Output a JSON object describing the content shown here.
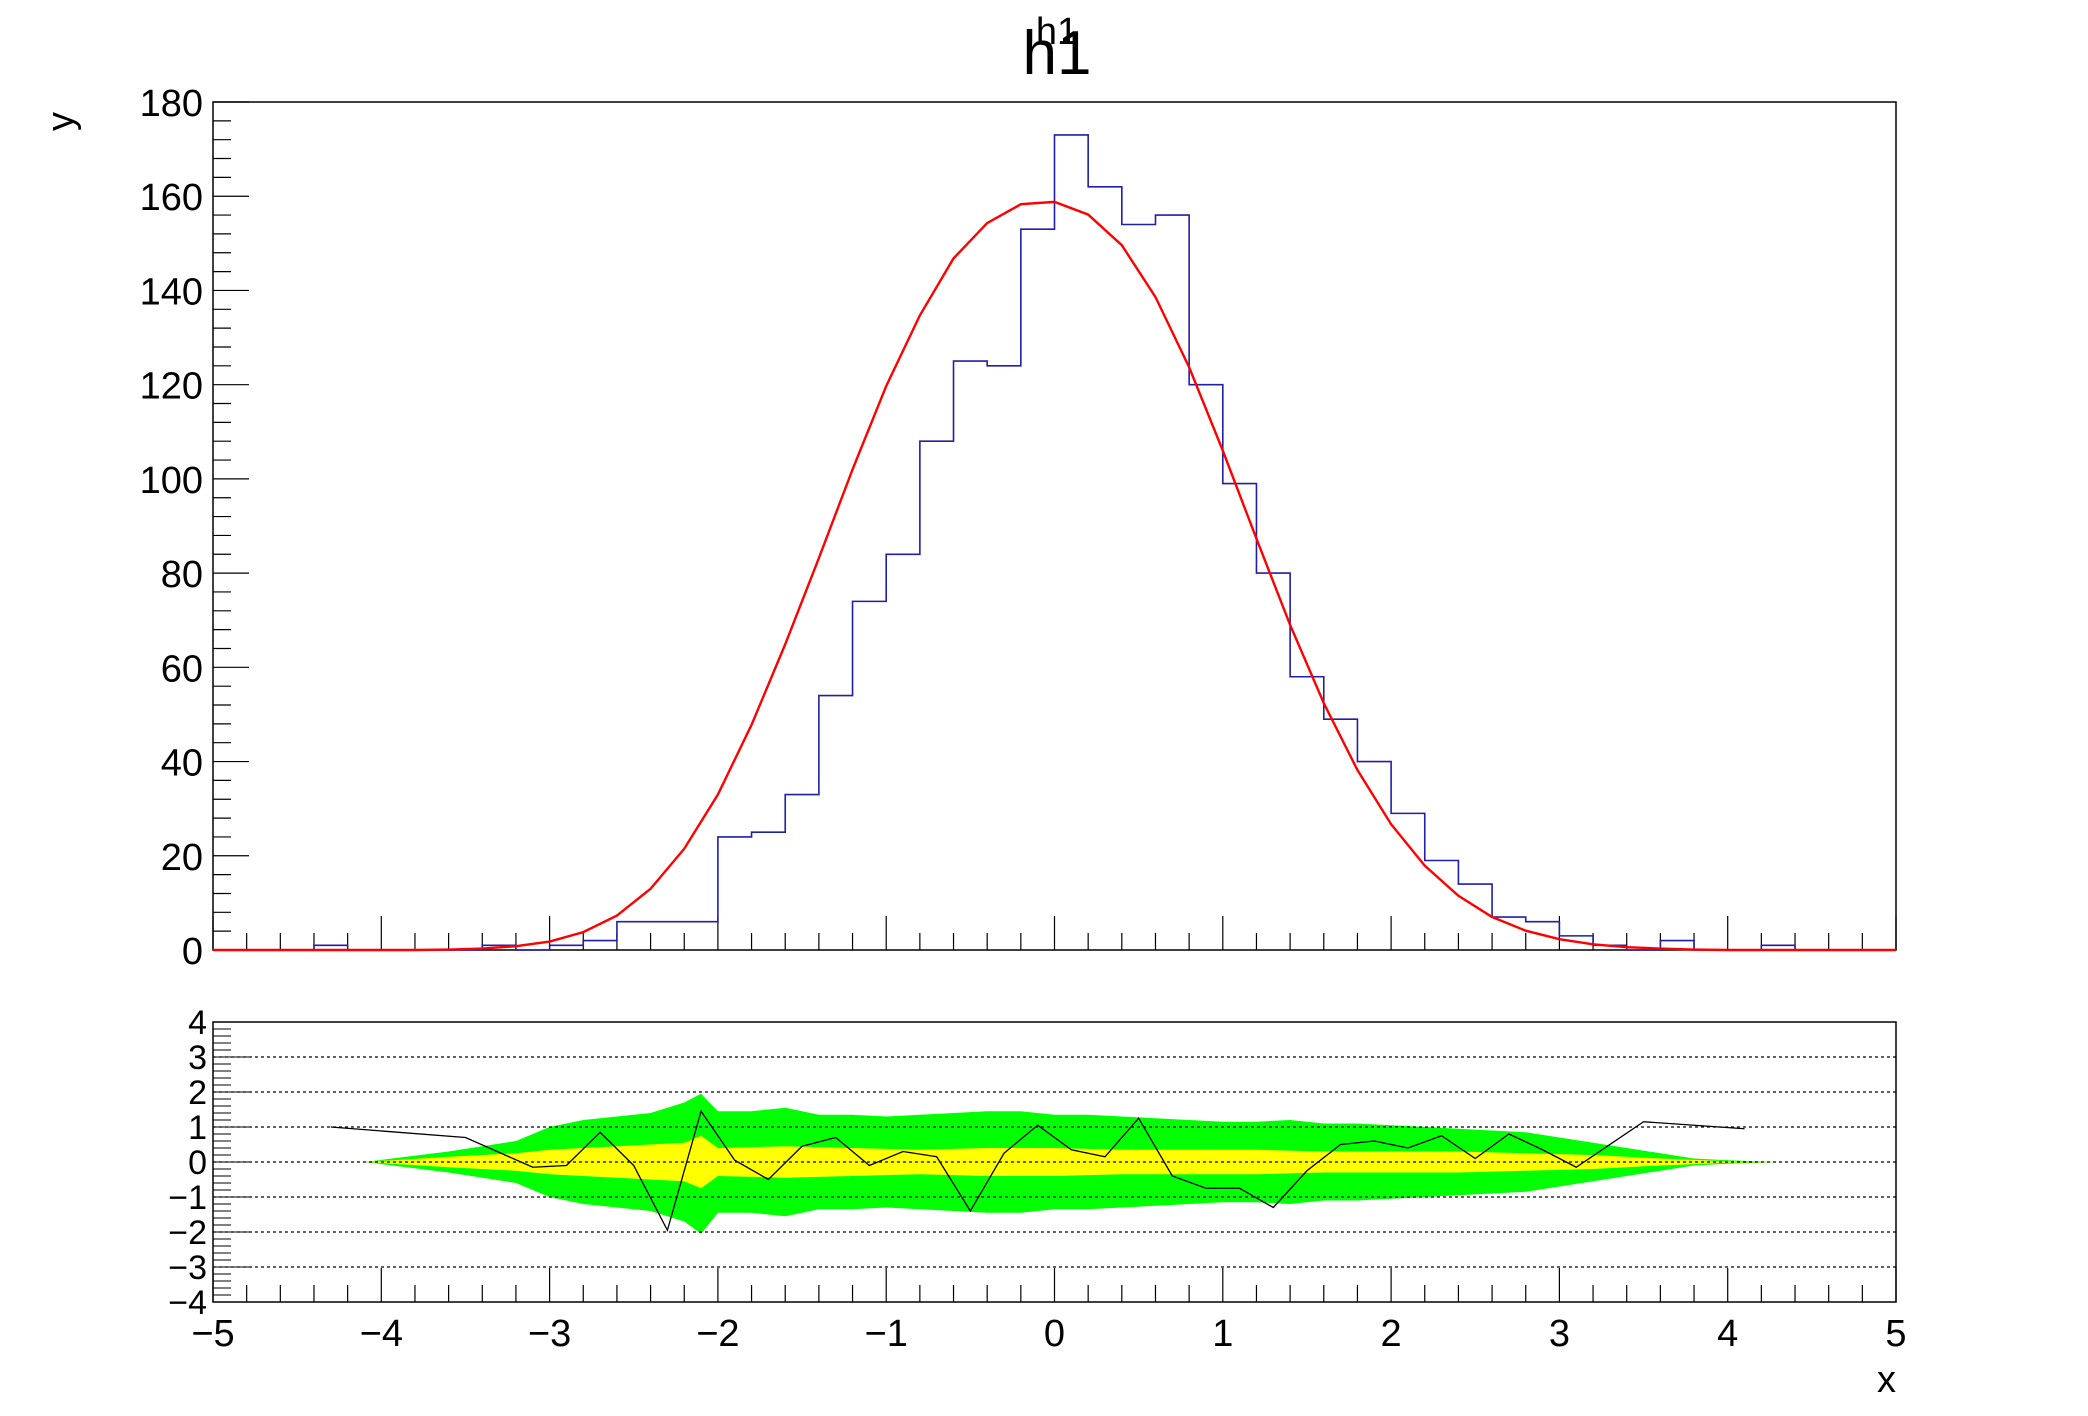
{
  "chart_data": [
    {
      "type": "histogram-with-fit",
      "title": "h1",
      "ylabel": "y",
      "xlim": [
        -5,
        5
      ],
      "ylim": [
        0,
        180
      ],
      "x_ticks": [
        -5,
        -4,
        -3,
        -2,
        -1,
        0,
        1,
        2,
        3,
        4,
        5
      ],
      "y_ticks": [
        0,
        20,
        40,
        60,
        80,
        100,
        120,
        140,
        160,
        180
      ],
      "colors": {
        "histogram": "#1f1fa8",
        "fit": "#ff0000",
        "frame": "#000000"
      },
      "histogram": {
        "bin_width": 0.2,
        "bin_lows": [
          -5.0,
          -4.8,
          -4.6,
          -4.4,
          -4.2,
          -4.0,
          -3.8,
          -3.6,
          -3.4,
          -3.2,
          -3.0,
          -2.8,
          -2.6,
          -2.4,
          -2.2,
          -2.0,
          -1.8,
          -1.6,
          -1.4,
          -1.2,
          -1.0,
          -0.8,
          -0.6,
          -0.4,
          -0.2,
          0.0,
          0.2,
          0.4,
          0.6,
          0.8,
          1.0,
          1.2,
          1.4,
          1.6,
          1.8,
          2.0,
          2.2,
          2.4,
          2.6,
          2.8,
          3.0,
          3.2,
          3.4,
          3.6,
          3.8,
          4.0,
          4.2,
          4.4,
          4.6,
          4.8
        ],
        "counts": [
          0,
          0,
          0,
          1,
          0,
          0,
          0,
          0,
          1,
          0,
          1,
          2,
          6,
          6,
          6,
          24,
          25,
          33,
          54,
          74,
          84,
          108,
          125,
          124,
          153,
          173,
          162,
          154,
          156,
          120,
          99,
          80,
          58,
          49,
          40,
          29,
          19,
          14,
          7,
          6,
          3,
          1,
          0,
          2,
          0,
          0,
          1,
          0,
          0,
          0
        ]
      },
      "fit": {
        "function": "gaussian",
        "x": [
          -5,
          -4.8,
          -4.6,
          -4.4,
          -4.2,
          -4,
          -3.8,
          -3.6,
          -3.4,
          -3.2,
          -3,
          -2.8,
          -2.6,
          -2.4,
          -2.2,
          -2,
          -1.8,
          -1.6,
          -1.4,
          -1.2,
          -1,
          -0.8,
          -0.6,
          -0.4,
          -0.2,
          0,
          0.2,
          0.4,
          0.6,
          0.8,
          1,
          1.2,
          1.4,
          1.6,
          1.8,
          2,
          2.2,
          2.4,
          2.6,
          2.8,
          3,
          3.2,
          3.4,
          3.6,
          3.8,
          4,
          4.2,
          4.4,
          4.6,
          4.8,
          5
        ],
        "y": [
          0,
          0,
          0,
          0,
          0,
          0,
          0,
          0.1,
          0.3,
          0.8,
          1.8,
          3.8,
          7.3,
          13,
          21.5,
          33,
          47.8,
          64.9,
          83.2,
          102,
          119.7,
          134.7,
          146.8,
          154.3,
          158.3,
          158.8,
          156.1,
          149.6,
          138.6,
          123.7,
          106,
          87.3,
          69,
          52.4,
          38.2,
          26.7,
          17.9,
          11.5,
          7,
          4.1,
          2.3,
          1.2,
          0.6,
          0.3,
          0.1,
          0,
          0,
          0,
          0,
          0,
          0
        ]
      }
    },
    {
      "type": "residuals",
      "xlabel": "x",
      "xlim": [
        -5,
        5
      ],
      "ylim": [
        -4,
        4
      ],
      "x_ticks": [
        -5,
        -4,
        -3,
        -2,
        -1,
        0,
        1,
        2,
        3,
        4,
        5
      ],
      "y_ticks": [
        -4,
        -3,
        -2,
        -1,
        0,
        1,
        2,
        3,
        4
      ],
      "grid_y": [
        -3,
        -2,
        -1,
        0,
        1,
        2,
        3
      ],
      "colors": {
        "band_2sigma": "#00ff00",
        "band_1sigma": "#ffff00",
        "residual_line": "#000000",
        "grid": "#000000"
      },
      "band_2sigma": {
        "x": [
          -4.1,
          -3.6,
          -3.2,
          -3.0,
          -2.8,
          -2.6,
          -2.4,
          -2.2,
          -2.1,
          -2.0,
          -1.8,
          -1.6,
          -1.4,
          -1.2,
          -1.0,
          -0.8,
          -0.6,
          -0.4,
          -0.2,
          0.0,
          0.2,
          0.4,
          0.6,
          0.8,
          1.0,
          1.2,
          1.4,
          1.6,
          1.8,
          2.0,
          2.2,
          2.4,
          2.6,
          2.8,
          3.0,
          3.2,
          3.4,
          3.6,
          3.8,
          4.0,
          4.3
        ],
        "upper": [
          0.0,
          0.3,
          0.6,
          1.0,
          1.2,
          1.3,
          1.4,
          1.7,
          1.95,
          1.45,
          1.45,
          1.55,
          1.35,
          1.35,
          1.3,
          1.35,
          1.4,
          1.45,
          1.45,
          1.35,
          1.35,
          1.3,
          1.25,
          1.2,
          1.15,
          1.15,
          1.2,
          1.1,
          1.1,
          1.05,
          1.0,
          0.95,
          0.9,
          0.85,
          0.7,
          0.55,
          0.4,
          0.25,
          0.1,
          0.05,
          0.0
        ],
        "lower": [
          0.0,
          -0.3,
          -0.6,
          -1.0,
          -1.2,
          -1.3,
          -1.4,
          -1.7,
          -2.05,
          -1.45,
          -1.45,
          -1.55,
          -1.35,
          -1.35,
          -1.3,
          -1.35,
          -1.4,
          -1.45,
          -1.45,
          -1.35,
          -1.35,
          -1.3,
          -1.25,
          -1.2,
          -1.15,
          -1.15,
          -1.2,
          -1.1,
          -1.1,
          -1.05,
          -1.0,
          -0.95,
          -0.9,
          -0.85,
          -0.7,
          -0.55,
          -0.4,
          -0.25,
          -0.1,
          -0.05,
          0.0
        ]
      },
      "band_1sigma": {
        "x": [
          -4.1,
          -3.6,
          -3.2,
          -3.0,
          -2.6,
          -2.2,
          -2.1,
          -2.0,
          -1.6,
          -1.2,
          -0.8,
          -0.4,
          0.0,
          0.4,
          0.8,
          1.2,
          1.6,
          2.0,
          2.4,
          2.8,
          3.2,
          3.6,
          4.0,
          4.3
        ],
        "upper": [
          0.0,
          0.15,
          0.25,
          0.35,
          0.45,
          0.55,
          0.75,
          0.4,
          0.45,
          0.4,
          0.35,
          0.4,
          0.4,
          0.35,
          0.35,
          0.35,
          0.3,
          0.3,
          0.3,
          0.25,
          0.2,
          0.1,
          0.02,
          0.0
        ],
        "lower": [
          0.0,
          -0.15,
          -0.25,
          -0.35,
          -0.45,
          -0.55,
          -0.75,
          -0.4,
          -0.45,
          -0.4,
          -0.35,
          -0.4,
          -0.4,
          -0.35,
          -0.35,
          -0.35,
          -0.3,
          -0.3,
          -0.3,
          -0.25,
          -0.2,
          -0.1,
          -0.02,
          0.0
        ]
      },
      "residuals": {
        "x": [
          -4.3,
          -3.5,
          -3.1,
          -2.9,
          -2.7,
          -2.5,
          -2.3,
          -2.1,
          -1.9,
          -1.7,
          -1.5,
          -1.3,
          -1.1,
          -0.9,
          -0.7,
          -0.5,
          -0.3,
          -0.1,
          0.1,
          0.3,
          0.5,
          0.7,
          0.9,
          1.1,
          1.3,
          1.5,
          1.7,
          1.9,
          2.1,
          2.3,
          2.5,
          2.7,
          2.9,
          3.1,
          3.5,
          4.1
        ],
        "y": [
          1.0,
          0.7,
          -0.15,
          -0.1,
          0.85,
          -0.1,
          -1.95,
          1.45,
          0.05,
          -0.5,
          0.45,
          0.7,
          -0.1,
          0.3,
          0.15,
          -1.4,
          0.25,
          1.05,
          0.35,
          0.15,
          1.25,
          -0.4,
          -0.75,
          -0.75,
          -1.3,
          -0.25,
          0.5,
          0.6,
          0.4,
          0.75,
          0.1,
          0.8,
          0.35,
          -0.15,
          1.15,
          0.95
        ]
      }
    }
  ]
}
